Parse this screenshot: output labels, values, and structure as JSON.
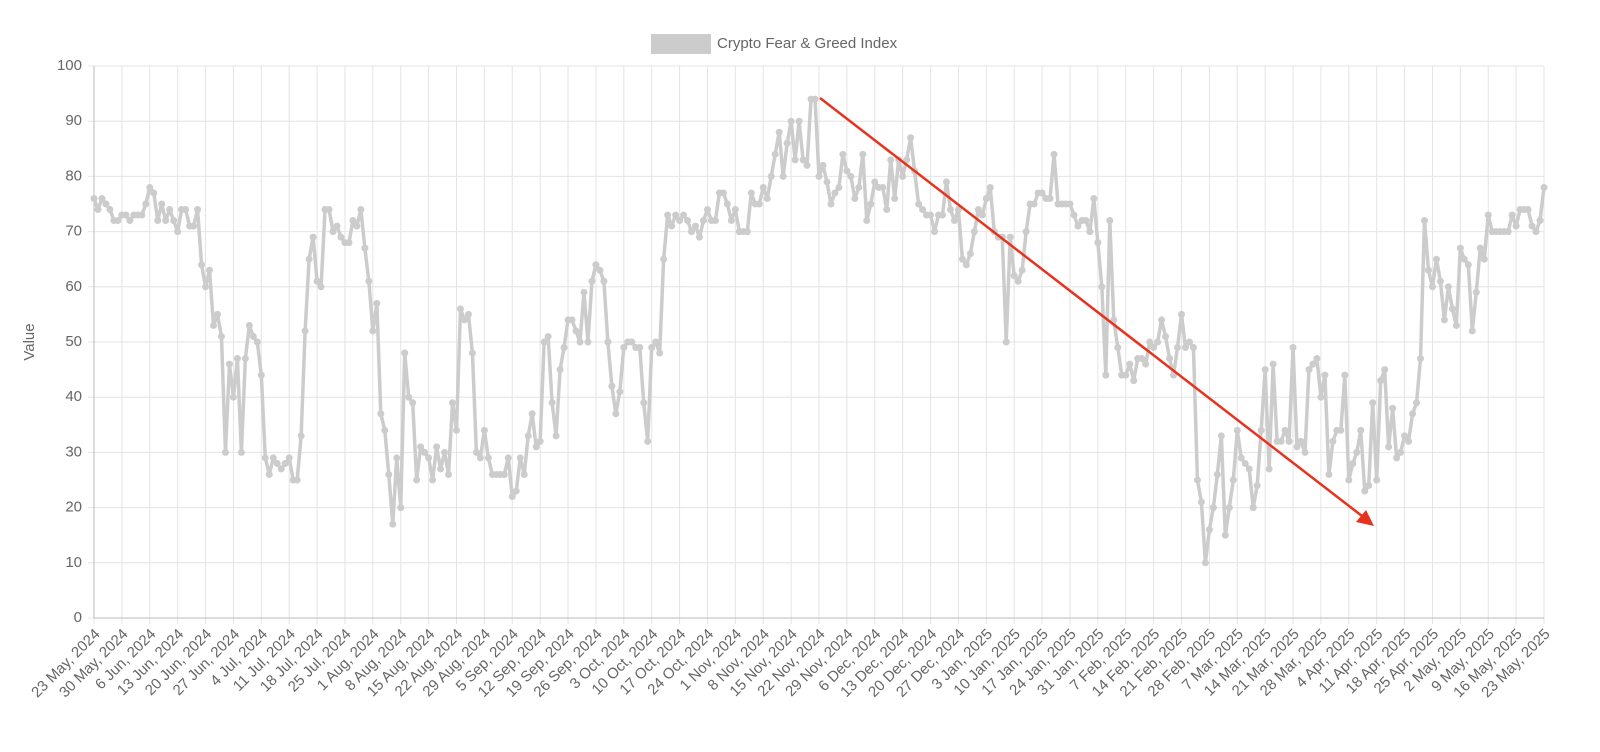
{
  "chart_data": {
    "type": "line",
    "y_label": "Value",
    "legend": "top",
    "grid": true,
    "ylim": [
      0,
      100
    ],
    "yticks": [
      0,
      10,
      20,
      30,
      40,
      50,
      60,
      70,
      80,
      90,
      100
    ],
    "categories": [
      "23 May, 2024",
      null,
      null,
      null,
      null,
      null,
      null,
      "30 May, 2024",
      null,
      null,
      null,
      null,
      null,
      null,
      "6 Jun, 2024",
      null,
      null,
      null,
      null,
      null,
      null,
      "13 Jun, 2024",
      null,
      null,
      null,
      null,
      null,
      null,
      "20 Jun, 2024",
      null,
      null,
      null,
      null,
      null,
      null,
      "27 Jun, 2024",
      null,
      null,
      null,
      null,
      null,
      null,
      "4 Jul, 2024",
      null,
      null,
      null,
      null,
      null,
      null,
      "11 Jul, 2024",
      null,
      null,
      null,
      null,
      null,
      null,
      "18 Jul, 2024",
      null,
      null,
      null,
      null,
      null,
      null,
      "25 Jul, 2024",
      null,
      null,
      null,
      null,
      null,
      null,
      "1 Aug, 2024",
      null,
      null,
      null,
      null,
      null,
      null,
      "8 Aug, 2024",
      null,
      null,
      null,
      null,
      null,
      null,
      "15 Aug, 2024",
      null,
      null,
      null,
      null,
      null,
      null,
      "22 Aug, 2024",
      null,
      null,
      null,
      null,
      null,
      null,
      "29 Aug, 2024",
      null,
      null,
      null,
      null,
      null,
      null,
      "5 Sep, 2024",
      null,
      null,
      null,
      null,
      null,
      null,
      "12 Sep, 2024",
      null,
      null,
      null,
      null,
      null,
      null,
      "19 Sep, 2024",
      null,
      null,
      null,
      null,
      null,
      null,
      "26 Sep, 2024",
      null,
      null,
      null,
      null,
      null,
      null,
      "3 Oct, 2024",
      null,
      null,
      null,
      null,
      null,
      null,
      "10 Oct, 2024",
      null,
      null,
      null,
      null,
      null,
      null,
      "17 Oct, 2024",
      null,
      null,
      null,
      null,
      null,
      null,
      "24 Oct, 2024",
      null,
      null,
      null,
      null,
      null,
      null,
      "1 Nov, 2024",
      null,
      null,
      null,
      null,
      null,
      null,
      "8 Nov, 2024",
      null,
      null,
      null,
      null,
      null,
      null,
      "15 Nov, 2024",
      null,
      null,
      null,
      null,
      null,
      null,
      "22 Nov, 2024",
      null,
      null,
      null,
      null,
      null,
      null,
      "29 Nov, 2024",
      null,
      null,
      null,
      null,
      null,
      null,
      "6 Dec, 2024",
      null,
      null,
      null,
      null,
      null,
      null,
      "13 Dec, 2024",
      null,
      null,
      null,
      null,
      null,
      null,
      "20 Dec, 2024",
      null,
      null,
      null,
      null,
      null,
      null,
      "27 Dec, 2024",
      null,
      null,
      null,
      null,
      null,
      null,
      "3 Jan, 2025",
      null,
      null,
      null,
      null,
      null,
      null,
      "10 Jan, 2025",
      null,
      null,
      null,
      null,
      null,
      null,
      "17 Jan, 2025",
      null,
      null,
      null,
      null,
      null,
      null,
      "24 Jan, 2025",
      null,
      null,
      null,
      null,
      null,
      null,
      "31 Jan, 2025",
      null,
      null,
      null,
      null,
      null,
      null,
      "7 Feb, 2025",
      null,
      null,
      null,
      null,
      null,
      null,
      "14 Feb, 2025",
      null,
      null,
      null,
      null,
      null,
      null,
      "21 Feb, 2025",
      null,
      null,
      null,
      null,
      null,
      null,
      "28 Feb, 2025",
      null,
      null,
      null,
      null,
      null,
      null,
      "7 Mar, 2025",
      null,
      null,
      null,
      null,
      null,
      null,
      "14 Mar, 2025",
      null,
      null,
      null,
      null,
      null,
      null,
      "21 Mar, 2025",
      null,
      null,
      null,
      null,
      null,
      null,
      "28 Mar, 2025",
      null,
      null,
      null,
      null,
      null,
      null,
      "4 Apr, 2025",
      null,
      null,
      null,
      null,
      null,
      null,
      "11 Apr, 2025",
      null,
      null,
      null,
      null,
      null,
      null,
      "18 Apr, 2025",
      null,
      null,
      null,
      null,
      null,
      null,
      "25 Apr, 2025",
      null,
      null,
      null,
      null,
      null,
      null,
      "2 May, 2025",
      null,
      null,
      null,
      null,
      null,
      null,
      "9 May, 2025",
      null,
      null,
      null,
      null,
      null,
      null,
      "16 May, 2025",
      null,
      null,
      null,
      null,
      null,
      null,
      "23 May, 2025"
    ],
    "series": [
      {
        "name": "Crypto Fear & Greed Index",
        "color": "#cccccc",
        "values": [
          76,
          74,
          76,
          75,
          74,
          72,
          72,
          73,
          73,
          72,
          73,
          73,
          73,
          75,
          78,
          77,
          72,
          75,
          72,
          74,
          72,
          70,
          74,
          74,
          71,
          71,
          74,
          64,
          60,
          63,
          53,
          55,
          51,
          30,
          46,
          40,
          47,
          30,
          47,
          53,
          51,
          50,
          44,
          29,
          26,
          29,
          28,
          27,
          28,
          29,
          25,
          25,
          33,
          52,
          65,
          69,
          61,
          60,
          74,
          74,
          70,
          71,
          69,
          68,
          68,
          72,
          71,
          74,
          67,
          61,
          52,
          57,
          37,
          34,
          26,
          17,
          29,
          20,
          48,
          40,
          39,
          25,
          31,
          30,
          29,
          25,
          31,
          27,
          30,
          26,
          39,
          34,
          56,
          54,
          55,
          48,
          30,
          29,
          34,
          29,
          26,
          26,
          26,
          26,
          29,
          22,
          23,
          29,
          26,
          33,
          37,
          31,
          32,
          50,
          51,
          39,
          33,
          45,
          49,
          54,
          54,
          52,
          50,
          59,
          50,
          61,
          64,
          63,
          61,
          50,
          42,
          37,
          41,
          49,
          50,
          50,
          49,
          49,
          39,
          32,
          49,
          50,
          48,
          65,
          73,
          71,
          73,
          72,
          73,
          72,
          70,
          71,
          69,
          72,
          74,
          72,
          72,
          77,
          77,
          75,
          72,
          74,
          70,
          70,
          70,
          77,
          75,
          75,
          78,
          76,
          80,
          84,
          88,
          80,
          86,
          90,
          83,
          90,
          83,
          82,
          94,
          94,
          80,
          82,
          79,
          75,
          77,
          78,
          84,
          81,
          80,
          76,
          78,
          84,
          72,
          75,
          79,
          78,
          78,
          74,
          83,
          76,
          83,
          80,
          83,
          87,
          81,
          75,
          74,
          73,
          73,
          70,
          73,
          73,
          79,
          74,
          72,
          74,
          65,
          64,
          66,
          70,
          74,
          73,
          76,
          78,
          70,
          69,
          69,
          50,
          69,
          62,
          61,
          63,
          70,
          75,
          75,
          77,
          77,
          76,
          76,
          84,
          75,
          75,
          75,
          75,
          73,
          71,
          72,
          72,
          70,
          76,
          68,
          60,
          44,
          72,
          54,
          49,
          44,
          44,
          46,
          43,
          47,
          47,
          46,
          50,
          49,
          50,
          54,
          51,
          47,
          44,
          49,
          55,
          49,
          50,
          49,
          25,
          21,
          10,
          16,
          20,
          26,
          33,
          15,
          20,
          25,
          34,
          29,
          28,
          27,
          20,
          24,
          34,
          45,
          27,
          46,
          32,
          32,
          34,
          32,
          49,
          31,
          32,
          30,
          45,
          46,
          47,
          40,
          44,
          26,
          32,
          34,
          34,
          44,
          25,
          28,
          30,
          34,
          23,
          24,
          39,
          25,
          43,
          45,
          31,
          38,
          29,
          30,
          33,
          32,
          37,
          39,
          47,
          72,
          63,
          60,
          65,
          61,
          54,
          60,
          56,
          53,
          67,
          65,
          64,
          52,
          59,
          67,
          65,
          73,
          70,
          70,
          70,
          70,
          70,
          73,
          71,
          74,
          74,
          74,
          71,
          70,
          72,
          78
        ]
      }
    ]
  }
}
